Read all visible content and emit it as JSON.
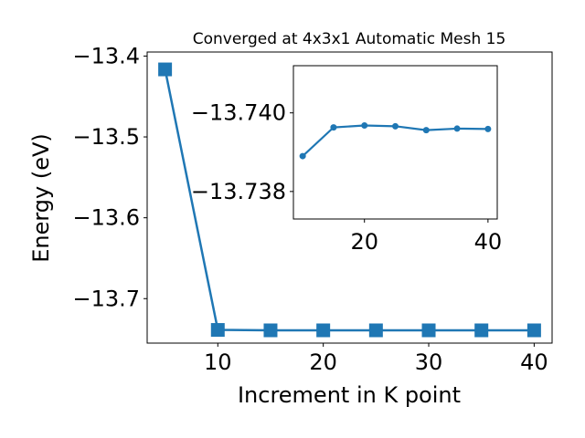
{
  "chart_data": [
    {
      "type": "line",
      "title": "Converged at 4x3x1 Automatic Mesh 15",
      "xlabel": "Increment in K point",
      "ylabel": "Energy (eV)",
      "x": [
        5,
        10,
        15,
        20,
        25,
        30,
        35,
        40
      ],
      "xlim": [
        3.3,
        41.7
      ],
      "ylim": [
        -13.755,
        -13.395
      ],
      "xticks": [
        10,
        20,
        30,
        40
      ],
      "xtick_labels": [
        "10",
        "20",
        "30",
        "40"
      ],
      "yticks": [
        -13.4,
        -13.5,
        -13.6,
        -13.7
      ],
      "ytick_labels": [
        "−13.4",
        "−13.5",
        "−13.6",
        "−13.7"
      ],
      "grid": false,
      "series": [
        {
          "values": [
            -13.4165,
            -13.7387,
            -13.7392,
            -13.7392,
            -13.7392,
            -13.7392,
            -13.7392,
            -13.7392
          ],
          "color": "#1f77b4",
          "marker": "square"
        }
      ]
    },
    {
      "type": "line",
      "title": "",
      "xlabel": "",
      "ylabel": "",
      "x": [
        10,
        15,
        20,
        25,
        30,
        35,
        40
      ],
      "xlim": [
        8.5,
        41.5
      ],
      "ylim": [
        -13.7373,
        -13.7412
      ],
      "xticks": [
        20,
        40
      ],
      "xtick_labels": [
        "20",
        "40"
      ],
      "yticks": [
        -13.738,
        -13.74
      ],
      "ytick_labels": [
        "−13.738",
        "−13.740"
      ],
      "grid": false,
      "series": [
        {
          "values": [
            -13.7389,
            -13.73963,
            -13.73968,
            -13.73966,
            -13.73956,
            -13.7396,
            -13.73959
          ],
          "color": "#1f77b4",
          "marker": "circle"
        }
      ]
    }
  ]
}
